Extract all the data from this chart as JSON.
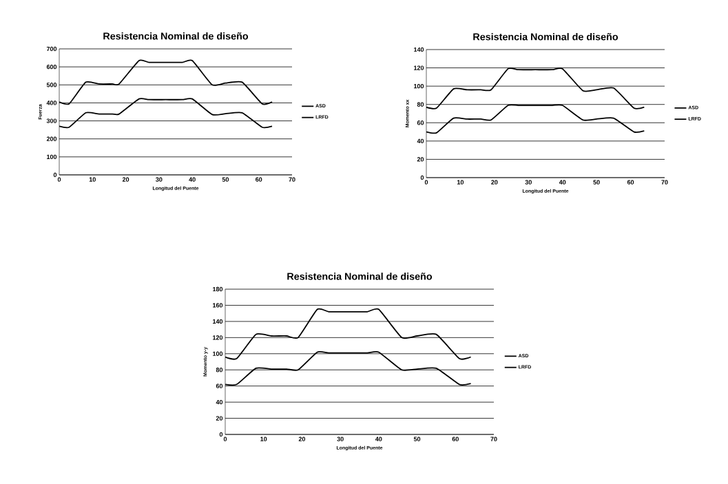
{
  "chart_data": [
    {
      "type": "line",
      "title": "Resistencia Nominal de diseño",
      "xlabel": "Longitud del Puente",
      "ylabel": "Fuerza",
      "xlim": [
        0,
        70
      ],
      "xticks": [
        0,
        10,
        20,
        30,
        40,
        50,
        60,
        70
      ],
      "ylim": [
        0,
        700
      ],
      "yticks": [
        0,
        100,
        200,
        300,
        400,
        500,
        600,
        700
      ],
      "grid": "y",
      "legend": "right",
      "marker": "none",
      "line_style": "solid",
      "x": [
        0,
        3,
        8,
        12,
        16,
        18,
        24,
        27,
        32,
        37,
        40,
        46,
        50,
        55,
        61,
        64
      ],
      "series": [
        {
          "name": "ASD",
          "color": "#000000",
          "values": [
            270,
            265,
            345,
            338,
            338,
            338,
            422,
            418,
            418,
            418,
            422,
            335,
            340,
            345,
            265,
            270
          ]
        },
        {
          "name": "LRFD",
          "color": "#000000",
          "values": [
            405,
            395,
            515,
            505,
            505,
            505,
            635,
            625,
            625,
            625,
            635,
            500,
            510,
            515,
            395,
            405
          ]
        }
      ]
    },
    {
      "type": "line",
      "title": "Resistencia Nominal de diseño",
      "xlabel": "Longitud del Puente",
      "ylabel": "Momento xx",
      "xlim": [
        0,
        70
      ],
      "xticks": [
        0,
        10,
        20,
        30,
        40,
        50,
        60,
        70
      ],
      "ylim": [
        0,
        140
      ],
      "yticks": [
        0,
        20,
        40,
        60,
        80,
        100,
        120,
        140
      ],
      "grid": "y",
      "legend": "right",
      "marker": "none",
      "line_style": "solid",
      "x": [
        0,
        3,
        8,
        12,
        16,
        19,
        24,
        27,
        32,
        37,
        40,
        46,
        50,
        55,
        61,
        64
      ],
      "series": [
        {
          "name": "ASD",
          "color": "#000000",
          "values": [
            50,
            49,
            65,
            64,
            64,
            63,
            79,
            79,
            79,
            79,
            79,
            63,
            64,
            65,
            50,
            51
          ]
        },
        {
          "name": "LRFD",
          "color": "#000000",
          "values": [
            77,
            76,
            97,
            96,
            96,
            96,
            119,
            118,
            118,
            118,
            119,
            95,
            96,
            98,
            76,
            77
          ]
        }
      ]
    },
    {
      "type": "line",
      "title": "Resistencia Nominal de diseño",
      "xlabel": "Longitud del Puente",
      "ylabel": "Momento y-y",
      "xlim": [
        0,
        70
      ],
      "xticks": [
        0,
        10,
        20,
        30,
        40,
        50,
        60,
        70
      ],
      "ylim": [
        0,
        180
      ],
      "yticks": [
        0,
        20,
        40,
        60,
        80,
        100,
        120,
        140,
        160,
        180
      ],
      "grid": "y",
      "legend": "right",
      "marker": "none",
      "line_style": "solid",
      "x": [
        0,
        3,
        8,
        12,
        16,
        19,
        24,
        27,
        32,
        37,
        40,
        46,
        50,
        55,
        61,
        64
      ],
      "series": [
        {
          "name": "ASD",
          "color": "#000000",
          "values": [
            62,
            62,
            82,
            81,
            81,
            80,
            102,
            101,
            101,
            101,
            102,
            80,
            81,
            82,
            62,
            63
          ]
        },
        {
          "name": "LRFD",
          "color": "#000000",
          "values": [
            96,
            94,
            124,
            122,
            122,
            120,
            155,
            152,
            152,
            152,
            155,
            120,
            122,
            124,
            94,
            96
          ]
        }
      ]
    }
  ]
}
